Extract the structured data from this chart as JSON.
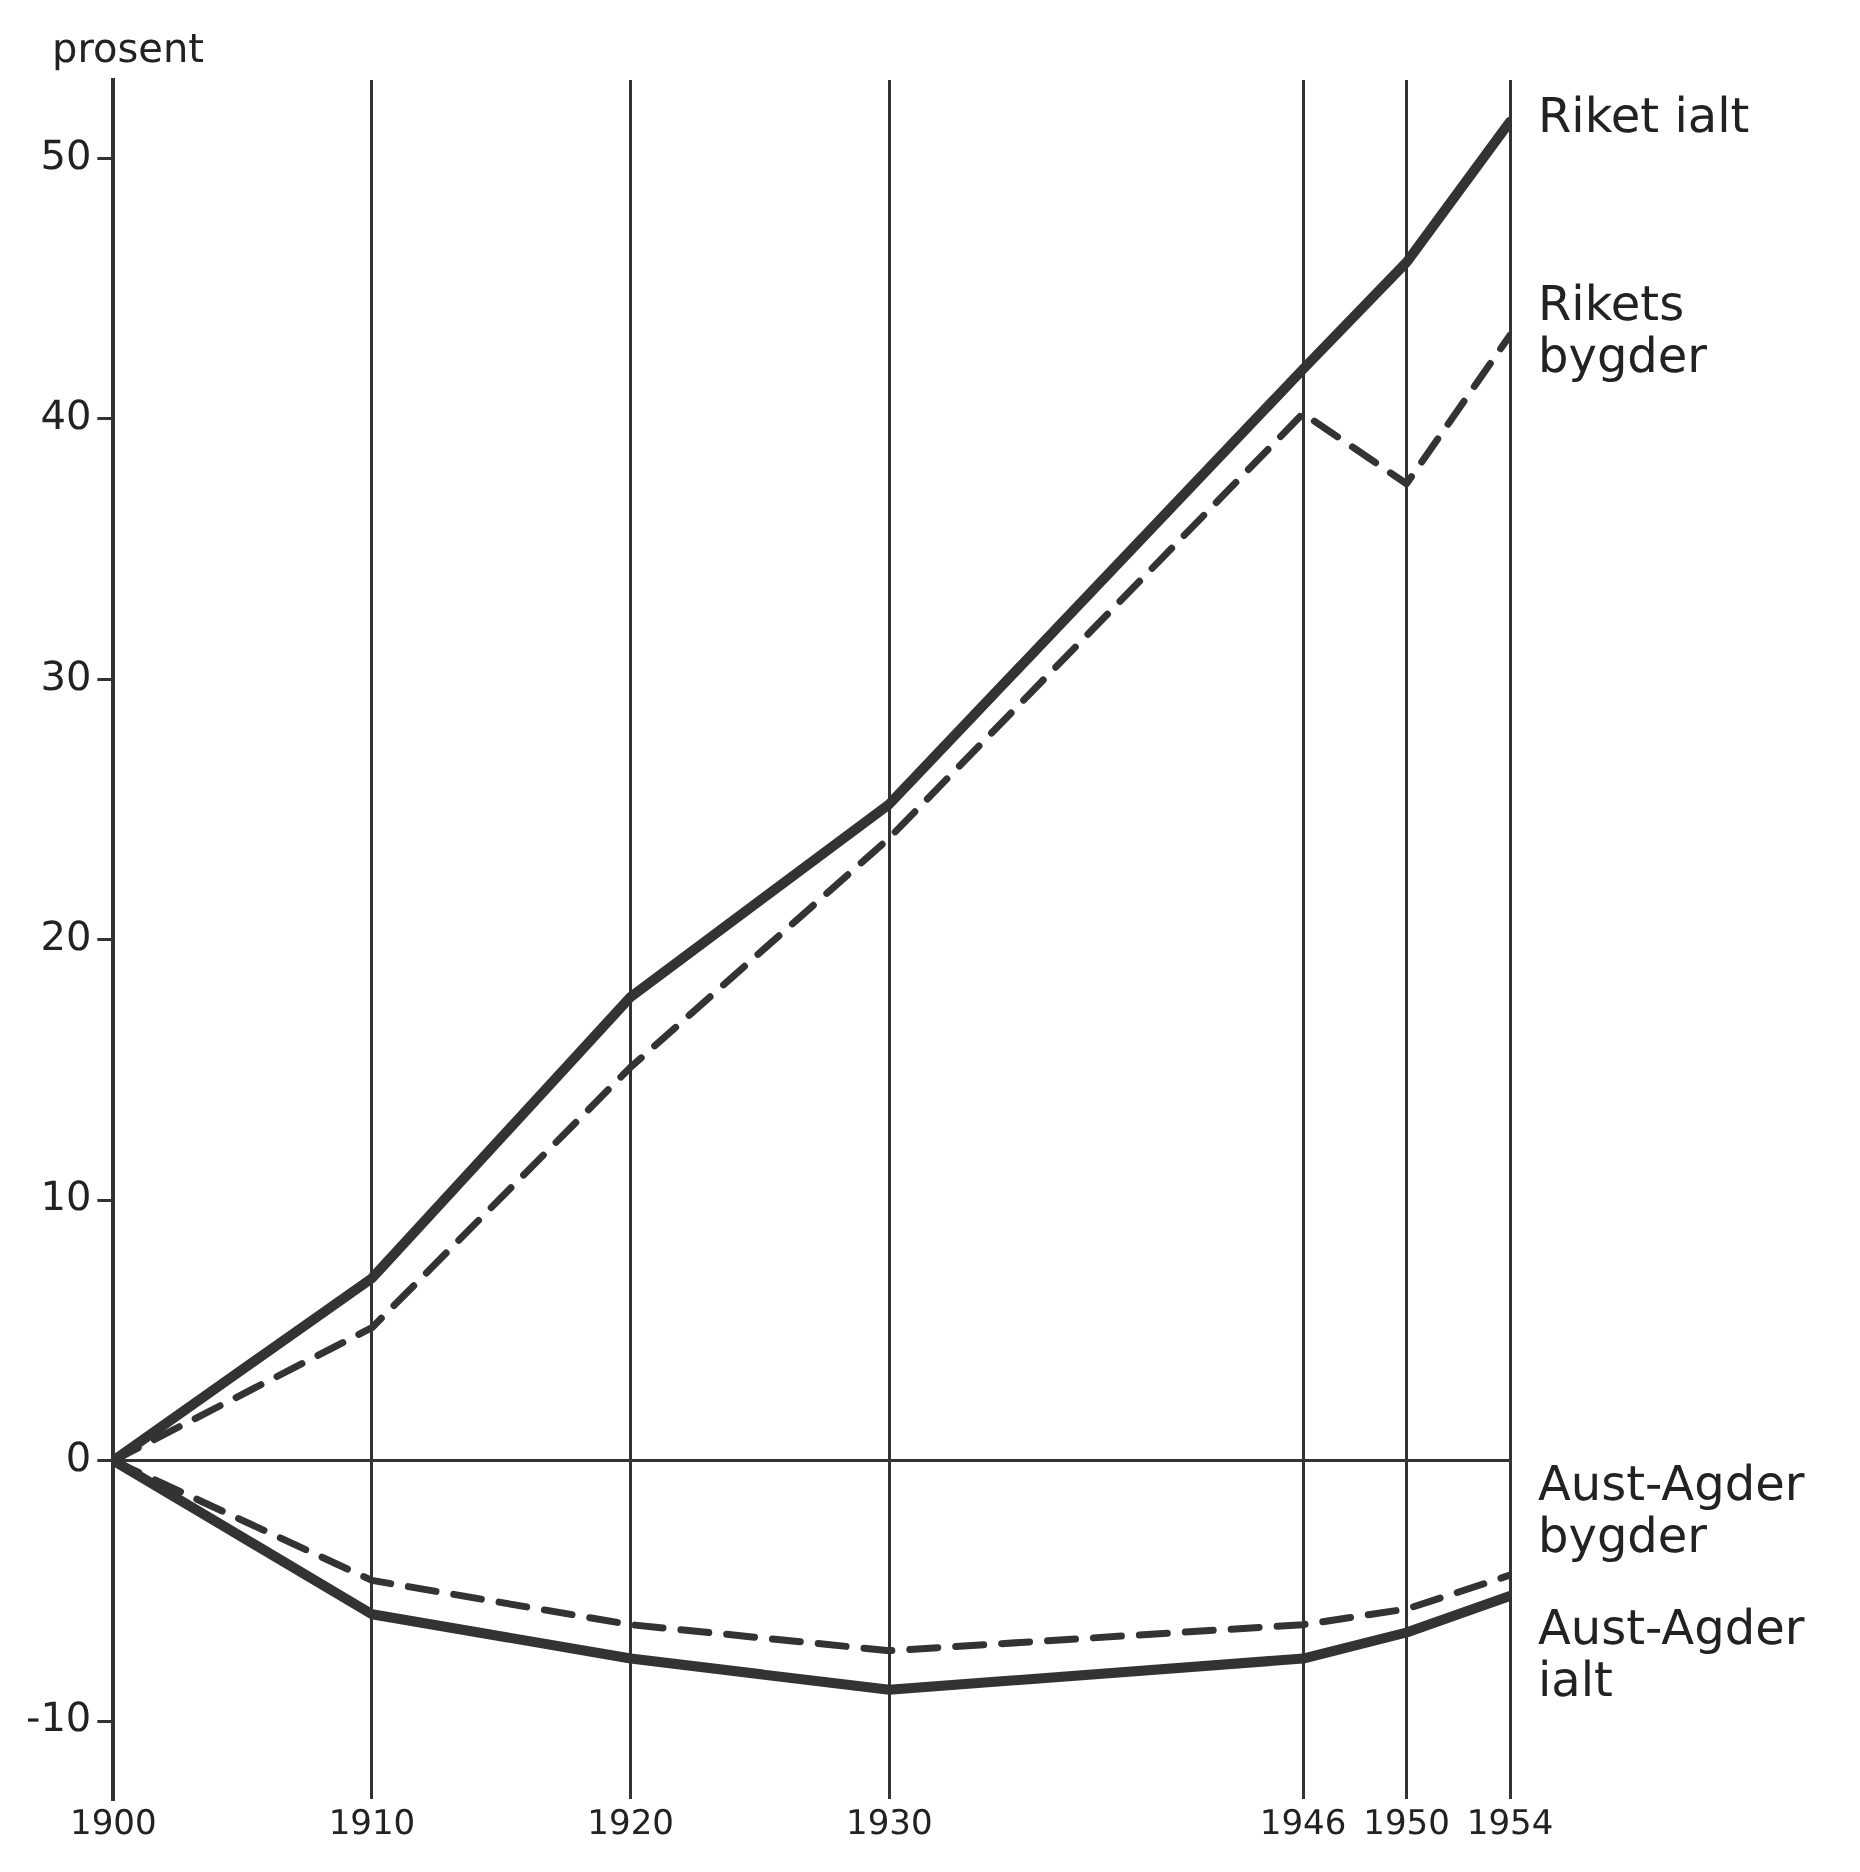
{
  "chart_data": {
    "type": "line",
    "ylabel": "prosent",
    "x": [
      1900,
      1910,
      1920,
      1930,
      1946,
      1950,
      1954
    ],
    "series": [
      {
        "name": "Riket ialt",
        "color": "#333333",
        "line_style": "solid",
        "values": [
          0,
          7.0,
          17.8,
          25.2,
          41.9,
          46.0,
          51.4
        ]
      },
      {
        "name": "Rikets bygder",
        "color": "#333333",
        "line_style": "dashed",
        "values": [
          0,
          5.1,
          15.1,
          23.9,
          40.2,
          37.5,
          43.2
        ]
      },
      {
        "name": "Aust-Agder bygder",
        "color": "#333333",
        "line_style": "dashed",
        "values": [
          0,
          -4.6,
          -6.3,
          -7.3,
          -6.3,
          -5.7,
          -4.4
        ]
      },
      {
        "name": "Aust-Agder ialt",
        "color": "#333333",
        "line_style": "solid",
        "values": [
          0,
          -5.9,
          -7.6,
          -8.8,
          -7.6,
          -6.6,
          -5.2
        ]
      }
    ],
    "xlim": [
      1900,
      1954
    ],
    "xticks": [
      1900,
      1910,
      1920,
      1930,
      1946,
      1950,
      1954
    ],
    "ylim": [
      -13,
      53
    ],
    "yticks": [
      -10,
      0,
      10,
      20,
      30,
      40,
      50
    ],
    "grid": "x",
    "legend": false,
    "marker": "none",
    "ref_lines": [
      {
        "axis": "y",
        "value": 0,
        "color": "#333333"
      }
    ]
  }
}
